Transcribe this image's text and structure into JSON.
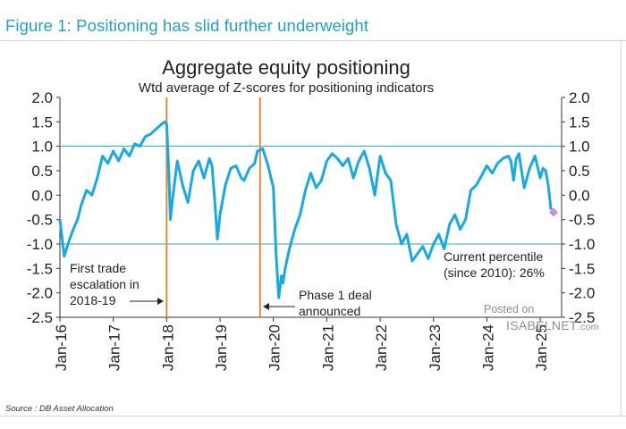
{
  "figure_title": "Figure 1: Positioning has slid further underweight",
  "source": "Source : DB Asset Allocation",
  "watermark": {
    "posted": "Posted on",
    "brand": "ISABELNET",
    "suffix": ".com"
  },
  "chart_data": {
    "type": "line",
    "title": "Aggregate equity positioning",
    "subtitle": "Wtd average of Z-scores for positioning indicators",
    "x_tick_labels": [
      "Jan-16",
      "Jan-17",
      "Jan-18",
      "Jan-19",
      "Jan-20",
      "Jan-21",
      "Jan-22",
      "Jan-23",
      "Jan-24",
      "Jan-25"
    ],
    "x_range": [
      2016.0,
      2025.4
    ],
    "ylim": [
      -2.5,
      2.0
    ],
    "y_ticks": [
      "2.0",
      "1.5",
      "1.0",
      "0.5",
      "0.0",
      "-0.5",
      "-1.0",
      "-1.5",
      "-2.0",
      "-2.5"
    ],
    "reference_lines": [
      1.0,
      -1.0
    ],
    "event_lines": [
      2018.0,
      2019.75
    ],
    "annotations": {
      "trade": "First trade escalation in 2018-19",
      "trade_lines": [
        "First trade",
        "escalation in",
        "2018-19"
      ],
      "phase1": "Phase 1 deal announced",
      "phase1_lines": [
        "Phase 1 deal",
        "announced"
      ],
      "current": "Current percentile (since 2010): 26%",
      "current_lines": [
        "Current percentile",
        "(since 2010): 26%"
      ]
    },
    "current_marker": {
      "x": 2025.25,
      "y": -0.35
    },
    "series": [
      {
        "name": "Aggregate equity positioning",
        "x": [
          2016.0,
          2016.08,
          2016.15,
          2016.25,
          2016.33,
          2016.4,
          2016.5,
          2016.6,
          2016.7,
          2016.8,
          2016.9,
          2017.0,
          2017.1,
          2017.2,
          2017.3,
          2017.4,
          2017.5,
          2017.6,
          2017.7,
          2017.8,
          2017.9,
          2017.97,
          2018.0,
          2018.04,
          2018.07,
          2018.12,
          2018.2,
          2018.3,
          2018.4,
          2018.5,
          2018.6,
          2018.7,
          2018.8,
          2018.85,
          2018.9,
          2018.95,
          2019.0,
          2019.1,
          2019.2,
          2019.3,
          2019.4,
          2019.45,
          2019.55,
          2019.65,
          2019.7,
          2019.8,
          2019.9,
          2020.0,
          2020.05,
          2020.1,
          2020.15,
          2020.18,
          2020.22,
          2020.3,
          2020.4,
          2020.5,
          2020.6,
          2020.7,
          2020.8,
          2020.9,
          2021.0,
          2021.1,
          2021.2,
          2021.3,
          2021.4,
          2021.5,
          2021.6,
          2021.7,
          2021.8,
          2021.9,
          2022.0,
          2022.1,
          2022.2,
          2022.3,
          2022.4,
          2022.5,
          2022.6,
          2022.7,
          2022.8,
          2022.9,
          2023.0,
          2023.1,
          2023.2,
          2023.3,
          2023.4,
          2023.5,
          2023.6,
          2023.7,
          2023.8,
          2023.9,
          2024.0,
          2024.1,
          2024.2,
          2024.3,
          2024.4,
          2024.45,
          2024.5,
          2024.55,
          2024.6,
          2024.65,
          2024.7,
          2024.8,
          2024.9,
          2025.0,
          2025.05,
          2025.1,
          2025.15,
          2025.2
        ],
        "values": [
          -0.5,
          -1.25,
          -1.0,
          -0.7,
          -0.5,
          -0.2,
          0.1,
          0.0,
          0.35,
          0.8,
          0.65,
          0.9,
          0.7,
          0.95,
          0.8,
          1.05,
          1.0,
          1.2,
          1.25,
          1.35,
          1.45,
          1.5,
          1.45,
          0.5,
          -0.5,
          0.0,
          0.7,
          0.2,
          -0.15,
          0.5,
          0.7,
          0.35,
          0.75,
          0.6,
          -0.1,
          -0.9,
          -0.4,
          0.2,
          0.55,
          0.6,
          0.35,
          0.3,
          0.55,
          0.65,
          0.9,
          0.95,
          0.6,
          0.15,
          -1.2,
          -2.1,
          -1.65,
          -1.8,
          -1.5,
          -1.1,
          -0.7,
          -0.4,
          0.1,
          0.45,
          0.15,
          0.3,
          0.7,
          0.85,
          0.75,
          0.6,
          0.75,
          0.35,
          0.7,
          0.9,
          0.55,
          0.0,
          0.8,
          0.45,
          0.3,
          -0.6,
          -1.0,
          -0.8,
          -1.35,
          -1.2,
          -1.05,
          -1.3,
          -1.0,
          -0.8,
          -1.1,
          -0.6,
          -0.4,
          -0.7,
          -0.5,
          0.1,
          0.2,
          0.4,
          0.6,
          0.45,
          0.65,
          0.75,
          0.8,
          0.7,
          0.3,
          0.75,
          0.85,
          0.5,
          0.15,
          0.55,
          0.8,
          0.35,
          0.55,
          0.5,
          0.2,
          -0.3
        ]
      }
    ]
  }
}
